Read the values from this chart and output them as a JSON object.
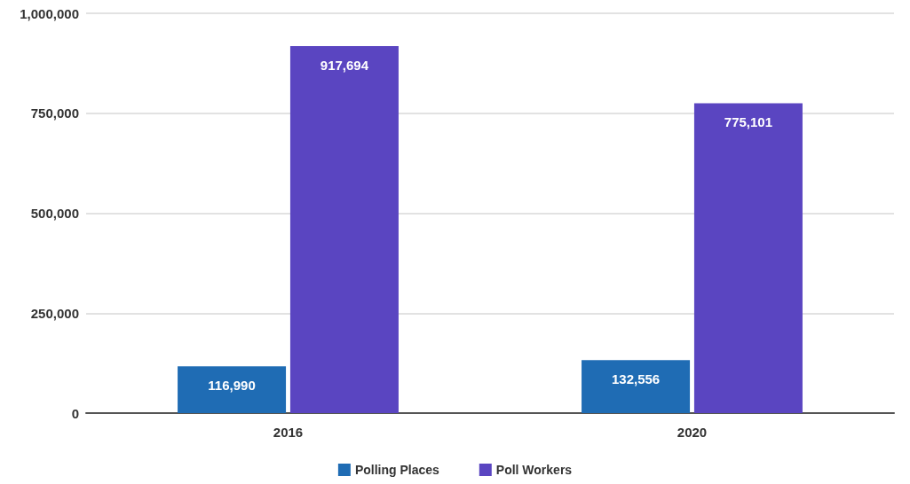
{
  "chart_data": {
    "type": "bar",
    "categories": [
      "2016",
      "2020"
    ],
    "series": [
      {
        "name": "Polling Places",
        "color": "#1f6cb4",
        "values": [
          116990,
          132556
        ],
        "value_labels": [
          "116,990",
          "132,556"
        ]
      },
      {
        "name": "Poll Workers",
        "color": "#5a45c1",
        "values": [
          917694,
          775101
        ],
        "value_labels": [
          "917,694",
          "775,101"
        ]
      }
    ],
    "ylim": [
      0,
      1000000
    ],
    "yticks": [
      0,
      {
        "value": 250000,
        "label": "250,000"
      },
      {
        "value": 500000,
        "label": "500,000"
      },
      {
        "value": 750000,
        "label": "750,000"
      },
      {
        "value": 1000000,
        "label": "1,000,000"
      }
    ],
    "grid": "y",
    "legend": "bottom"
  }
}
